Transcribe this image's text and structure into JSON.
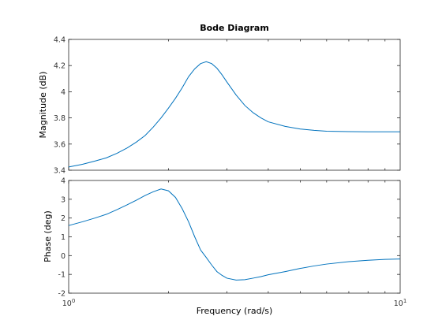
{
  "chart_data": {
    "type": "line",
    "title": "Bode Diagram",
    "xlabel": "Frequency  (rad/s)",
    "xscale": "log",
    "xlim": [
      1,
      10
    ],
    "x_ticks": [
      {
        "value": 1,
        "base": "10",
        "exp": "0"
      },
      {
        "value": 10,
        "base": "10",
        "exp": "1"
      }
    ],
    "grid": false,
    "line_color": "#0072BD",
    "panels": [
      {
        "id": "magnitude",
        "ylabel": "Magnitude (dB)",
        "ylim": [
          3.4,
          4.4
        ],
        "y_ticks": [
          3.4,
          3.6,
          3.8,
          4,
          4.2,
          4.4
        ],
        "y_tick_labels": [
          "3.4",
          "3.6",
          "3.8",
          "4",
          "4.2",
          "4.4"
        ],
        "x": [
          1,
          1.1,
          1.2,
          1.3,
          1.4,
          1.5,
          1.6,
          1.7,
          1.8,
          1.9,
          2.0,
          2.1,
          2.2,
          2.3,
          2.4,
          2.5,
          2.6,
          2.7,
          2.8,
          2.9,
          3.0,
          3.2,
          3.4,
          3.6,
          3.8,
          4.0,
          4.5,
          5.0,
          5.5,
          6,
          7,
          8,
          9,
          10
        ],
        "y": [
          3.425,
          3.445,
          3.47,
          3.495,
          3.53,
          3.57,
          3.615,
          3.665,
          3.73,
          3.8,
          3.875,
          3.95,
          4.03,
          4.115,
          4.175,
          4.215,
          4.23,
          4.215,
          4.18,
          4.13,
          4.075,
          3.975,
          3.895,
          3.84,
          3.8,
          3.77,
          3.735,
          3.715,
          3.705,
          3.698,
          3.695,
          3.694,
          3.694,
          3.694
        ]
      },
      {
        "id": "phase",
        "ylabel": "Phase (deg)",
        "ylim": [
          -2,
          4
        ],
        "y_ticks": [
          -2,
          -1,
          0,
          1,
          2,
          3,
          4
        ],
        "y_tick_labels": [
          "-2",
          "-1",
          "0",
          "1",
          "2",
          "3",
          "4"
        ],
        "x": [
          1,
          1.1,
          1.2,
          1.3,
          1.4,
          1.5,
          1.6,
          1.7,
          1.8,
          1.9,
          2.0,
          2.1,
          2.2,
          2.3,
          2.4,
          2.5,
          2.6,
          2.7,
          2.8,
          2.9,
          3.0,
          3.2,
          3.4,
          3.6,
          3.8,
          4.0,
          4.5,
          5.0,
          5.5,
          6,
          7,
          8,
          9,
          10
        ],
        "y": [
          1.6,
          1.8,
          2.0,
          2.2,
          2.45,
          2.7,
          2.95,
          3.2,
          3.4,
          3.55,
          3.45,
          3.1,
          2.5,
          1.8,
          1.0,
          0.3,
          -0.1,
          -0.5,
          -0.85,
          -1.05,
          -1.2,
          -1.3,
          -1.28,
          -1.2,
          -1.12,
          -1.02,
          -0.85,
          -0.68,
          -0.55,
          -0.45,
          -0.32,
          -0.25,
          -0.2,
          -0.18
        ]
      }
    ]
  }
}
